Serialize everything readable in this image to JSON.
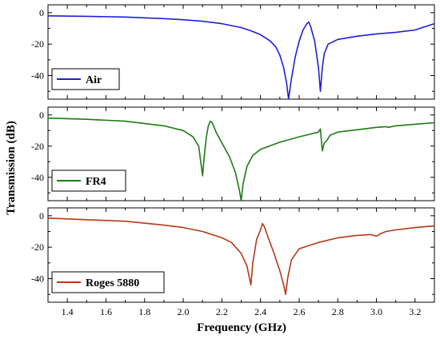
{
  "chart_data": {
    "type": "line",
    "xlabel": "Frequency (GHz)",
    "ylabel": "Transmission (dB)",
    "xlim": [
      1.3,
      3.3
    ],
    "x_ticks": [
      1.4,
      1.6,
      1.8,
      2.0,
      2.2,
      2.4,
      2.6,
      2.8,
      3.0,
      3.2
    ],
    "x_tick_labels": [
      "1.4",
      "1.6",
      "1.8",
      "2.0",
      "2.2",
      "2.4",
      "2.6",
      "2.8",
      "3.0",
      "3.2"
    ],
    "y_tick_labels": [
      "0",
      "-20",
      "-40"
    ],
    "grid": false,
    "legend_placement": "bottom-left",
    "panels": [
      {
        "legend": "Air",
        "color": "#1f1fd6",
        "ylim": [
          -55,
          5
        ],
        "series": {
          "name": "Air",
          "x": [
            1.3,
            1.5,
            1.7,
            1.9,
            2.0,
            2.1,
            2.2,
            2.3,
            2.35,
            2.4,
            2.45,
            2.48,
            2.5,
            2.52,
            2.535,
            2.545,
            2.56,
            2.58,
            2.6,
            2.62,
            2.64,
            2.65,
            2.66,
            2.68,
            2.7,
            2.71,
            2.72,
            2.73,
            2.75,
            2.8,
            2.9,
            3.0,
            3.1,
            3.2,
            3.25,
            3.3
          ],
          "y": [
            -2,
            -2.3,
            -2.8,
            -3.8,
            -4.5,
            -5.5,
            -7,
            -9.5,
            -11.5,
            -14,
            -18,
            -22,
            -27,
            -35,
            -45,
            -55,
            -42,
            -28,
            -18,
            -11,
            -7,
            -6,
            -9,
            -18,
            -35,
            -50,
            -35,
            -26,
            -20,
            -17,
            -15,
            -13.5,
            -12.5,
            -11,
            -9,
            -7
          ]
        }
      },
      {
        "legend": "FR4",
        "color": "#1e7a16",
        "ylim": [
          -55,
          5
        ],
        "series": {
          "name": "FR4",
          "x": [
            1.3,
            1.5,
            1.7,
            1.9,
            2.0,
            2.05,
            2.08,
            2.1,
            2.11,
            2.12,
            2.13,
            2.14,
            2.15,
            2.17,
            2.2,
            2.24,
            2.27,
            2.29,
            2.3,
            2.31,
            2.33,
            2.36,
            2.4,
            2.5,
            2.6,
            2.7,
            2.71,
            2.72,
            2.73,
            2.74,
            2.75,
            2.76,
            2.8,
            2.9,
            3.0,
            3.05,
            3.06,
            3.1,
            3.2,
            3.3
          ],
          "y": [
            -2,
            -2.8,
            -4,
            -7,
            -10,
            -14,
            -20,
            -39,
            -25,
            -14,
            -7,
            -4,
            -5,
            -11,
            -18,
            -27,
            -37,
            -48,
            -55,
            -44,
            -33,
            -26,
            -22,
            -17.5,
            -14,
            -11,
            -9,
            -23,
            -18,
            -17,
            -15,
            -13,
            -11,
            -9.5,
            -8,
            -7.5,
            -8,
            -7,
            -6,
            -5
          ]
        }
      },
      {
        "legend": "Roges 5880",
        "color": "#b33a18",
        "ylim": [
          -55,
          5
        ],
        "series": {
          "name": "Roges 5880",
          "x": [
            1.3,
            1.5,
            1.7,
            1.9,
            2.0,
            2.1,
            2.2,
            2.25,
            2.3,
            2.33,
            2.35,
            2.36,
            2.38,
            2.4,
            2.41,
            2.42,
            2.44,
            2.47,
            2.5,
            2.52,
            2.53,
            2.54,
            2.56,
            2.6,
            2.7,
            2.8,
            2.9,
            2.97,
            3.0,
            3.02,
            3.05,
            3.1,
            3.2,
            3.3
          ],
          "y": [
            -1.5,
            -2.5,
            -3.5,
            -6,
            -7.5,
            -10,
            -14,
            -17,
            -24,
            -32,
            -44,
            -30,
            -15,
            -9,
            -5,
            -7,
            -14,
            -24,
            -35,
            -44,
            -50,
            -40,
            -28,
            -21,
            -17,
            -14,
            -12.5,
            -12,
            -13,
            -11.5,
            -10,
            -9,
            -7.5,
            -6.5
          ]
        }
      }
    ]
  }
}
